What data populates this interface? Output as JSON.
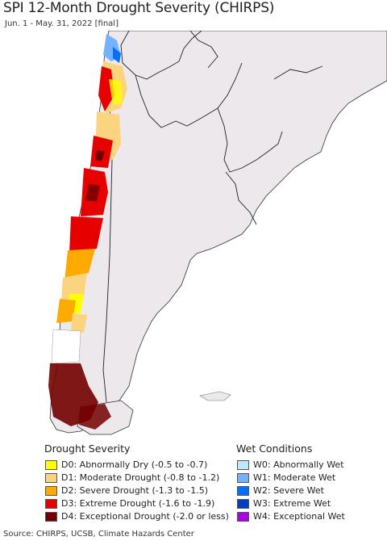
{
  "title": "SPI 12-Month Drought Severity (CHIRPS)",
  "subtitle": "Jun. 1 - May. 31, 2022 [final]",
  "legend": {
    "drought_heading": "Drought Severity",
    "wet_heading": "Wet Conditions",
    "drought_items": [
      {
        "label": "D0: Abnormally Dry (-0.5 to -0.7)",
        "color": "#ffff00"
      },
      {
        "label": "D1: Moderate Drought (-0.8 to -1.2)",
        "color": "#fcd37f"
      },
      {
        "label": "D2: Severe Drought (-1.3 to -1.5)",
        "color": "#ffaa00"
      },
      {
        "label": "D3: Extreme Drought (-1.6 to -1.9)",
        "color": "#e60000"
      },
      {
        "label": "D4: Exceptional Drought (-2.0 or less)",
        "color": "#730000"
      }
    ],
    "wet_items": [
      {
        "label": "W0: Abnormally Wet",
        "color": "#bee8ff"
      },
      {
        "label": "W1: Moderate Wet",
        "color": "#73b2ff"
      },
      {
        "label": "W2: Severe Wet",
        "color": "#0070ff"
      },
      {
        "label": "W3: Extreme Wet",
        "color": "#0040c0"
      },
      {
        "label": "W4: Exceptional Wet",
        "color": "#a900e6"
      }
    ]
  },
  "source": "Source: CHIRPS, UCSB, Climate Hazards Center",
  "colors": {
    "land": "#ece8ec",
    "ocean": "#ffffff",
    "border": "#222222"
  }
}
